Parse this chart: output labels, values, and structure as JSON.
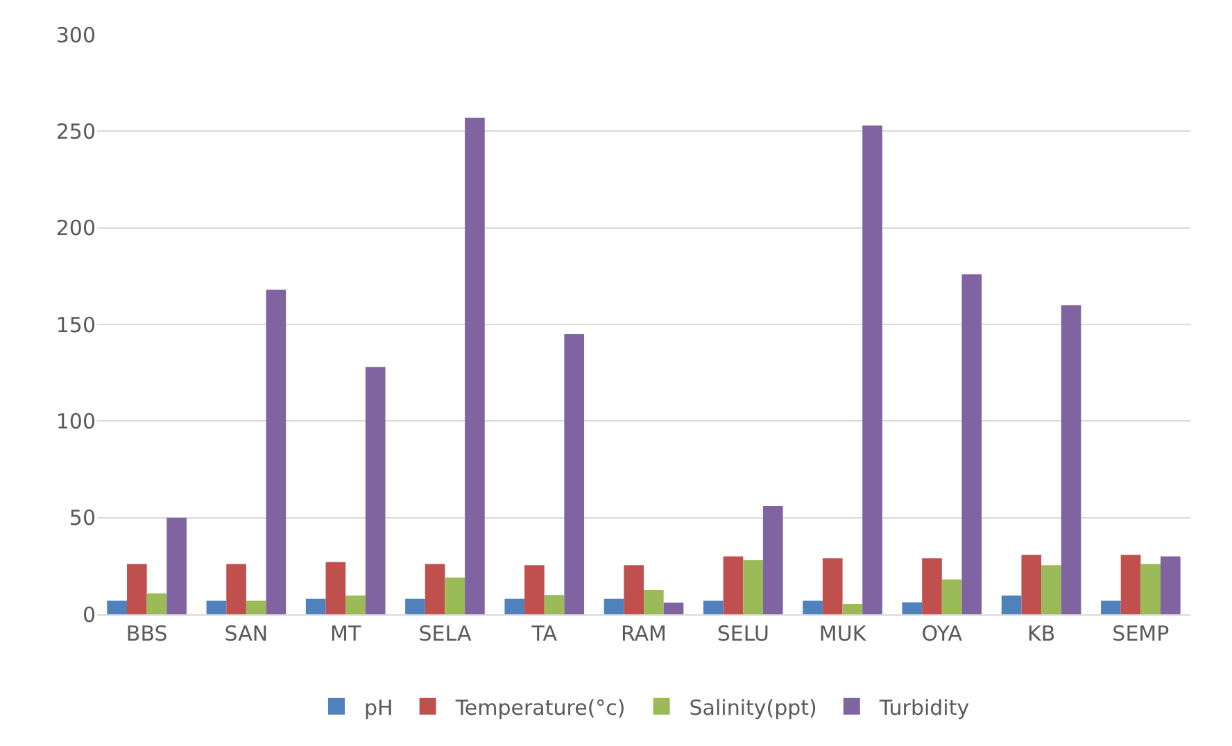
{
  "chart_data": {
    "type": "bar",
    "categories": [
      "BBS",
      "SAN",
      "MT",
      "SELA",
      "TA",
      "RAM",
      "SELU",
      "MUK",
      "OYA",
      "KB",
      "SEMP"
    ],
    "series": [
      {
        "name": "pH",
        "color": "#4f81bd",
        "values": [
          7,
          7,
          8,
          8,
          8,
          8,
          7,
          7,
          6.2,
          9.7,
          7
        ]
      },
      {
        "name": "Temperature(°c)",
        "color": "#c0504d",
        "values": [
          26,
          26,
          27,
          26,
          25.4,
          25.4,
          30,
          29,
          29,
          30.8,
          30.8
        ]
      },
      {
        "name": "Salinity(ppt)",
        "color": "#9bbb59",
        "values": [
          10.8,
          7,
          9.7,
          19,
          10,
          12.6,
          28,
          5.4,
          18,
          25.4,
          26
        ]
      },
      {
        "name": "Turbidity",
        "color": "#8064a2",
        "values": [
          50,
          168,
          128,
          257,
          145,
          6,
          56,
          253,
          176,
          160,
          30
        ]
      }
    ],
    "ylim": [
      0,
      300
    ],
    "yticks": [
      0,
      50,
      100,
      150,
      200,
      250,
      300
    ],
    "grid": "y",
    "legend": "bottom"
  }
}
